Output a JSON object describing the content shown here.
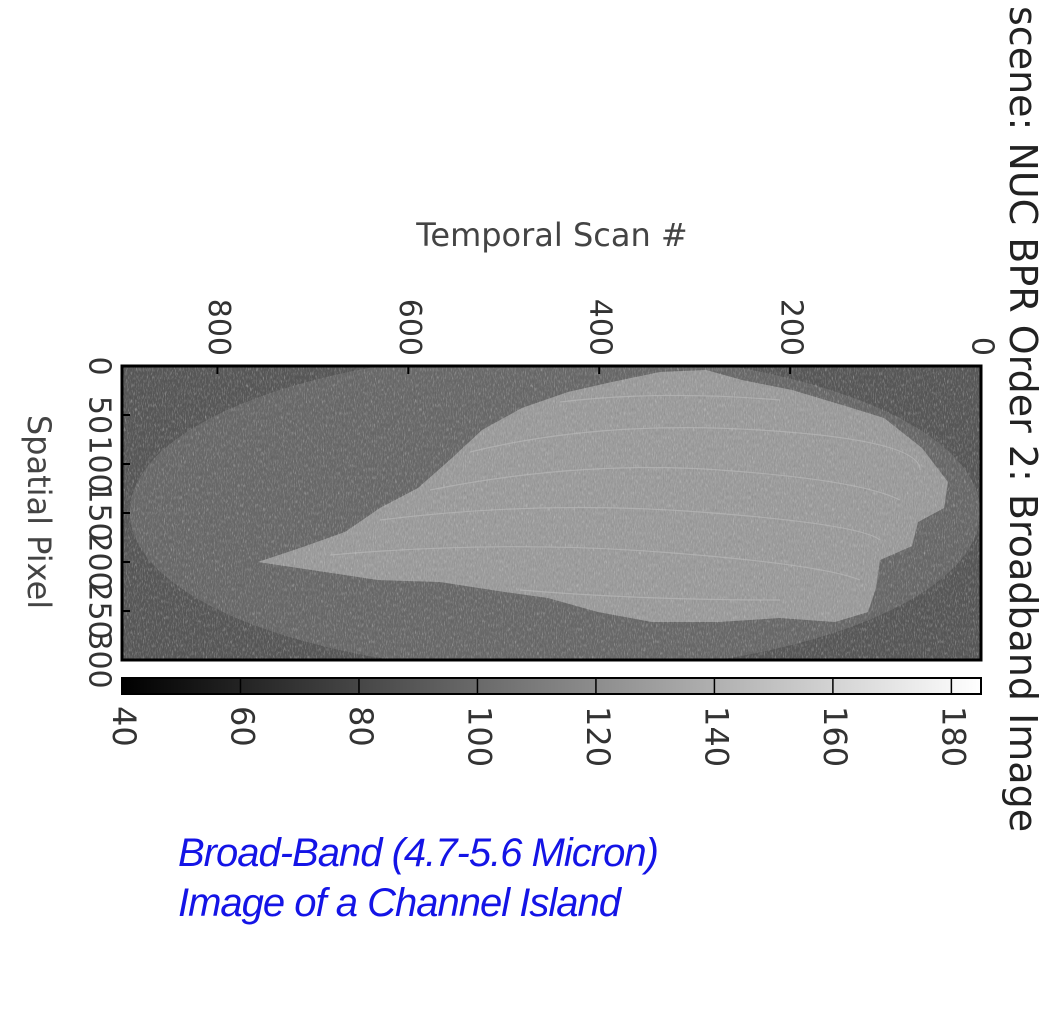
{
  "chart_data": {
    "type": "heatmap",
    "title": "scene: NUC BPR Order 2: Broadband Image",
    "xlabel": "Temporal Scan #",
    "ylabel": "Spatial Pixel",
    "x_ticks": [
      800,
      600,
      400,
      200,
      0
    ],
    "y_ticks": [
      "0",
      "50",
      "100",
      "150",
      "200",
      "250",
      "300"
    ],
    "xlim": [
      900,
      0
    ],
    "ylim": [
      0,
      300
    ],
    "colormap": "gray",
    "colorbar": {
      "ticks": [
        40,
        60,
        80,
        100,
        120,
        140,
        160,
        180
      ],
      "range": [
        40,
        185
      ]
    },
    "regions": [
      {
        "name": "background",
        "approx_value": 70
      },
      {
        "name": "field-of-view ellipse",
        "approx_value": 85
      },
      {
        "name": "island",
        "approx_value": 130
      }
    ],
    "colors": {
      "frame": "#000000",
      "island": "#9a9a9a",
      "background": "#5a5a5a"
    }
  },
  "caption": {
    "line1": "Broad-Band (4.7-5.6 Micron)",
    "line2": "Image of a Channel Island",
    "color": "#1414e6"
  }
}
